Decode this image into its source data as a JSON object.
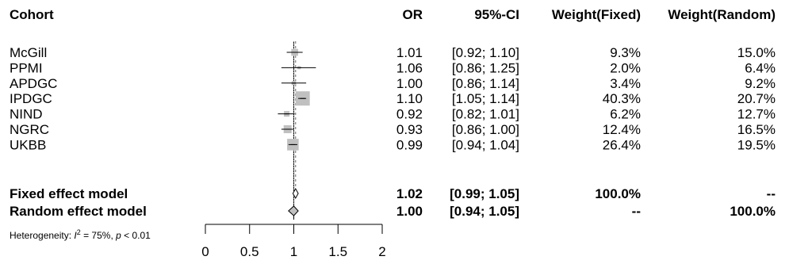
{
  "header": {
    "cohort": "Cohort",
    "or": "OR",
    "ci": "95%-CI",
    "weight_fixed": "Weight(Fixed)",
    "weight_random": "Weight(Random)"
  },
  "footer": {
    "heterogeneity_prefix": "Heterogeneity: ",
    "heterogeneity_i2_label": "I",
    "heterogeneity_i2_sup": "2",
    "heterogeneity_i2_value": " = 75%, ",
    "heterogeneity_p_label": "p",
    "heterogeneity_p_value": " < 0.01"
  },
  "colors": {
    "study_box": "#c0c0c0",
    "line": "#000000",
    "random_diamond": "#c0c0c0",
    "fixed_line": "#808080"
  },
  "chart_data": {
    "type": "forest",
    "xlim": [
      0,
      2
    ],
    "xticks": [
      "0",
      "0.5",
      "1",
      "1.5",
      "2"
    ],
    "null_value": 1,
    "studies": [
      {
        "cohort": "McGill",
        "or": 1.01,
        "lower": 0.92,
        "upper": 1.1,
        "or_text": "1.01",
        "ci_text": "[0.92; 1.10]",
        "weight_fixed": "9.3%",
        "weight_random": "15.0%",
        "wf": 9.3
      },
      {
        "cohort": "PPMI",
        "or": 1.06,
        "lower": 0.86,
        "upper": 1.25,
        "or_text": "1.06",
        "ci_text": "[0.86; 1.25]",
        "weight_fixed": "2.0%",
        "weight_random": "6.4%",
        "wf": 2.0
      },
      {
        "cohort": "APDGC",
        "or": 1.0,
        "lower": 0.86,
        "upper": 1.14,
        "or_text": "1.00",
        "ci_text": "[0.86; 1.14]",
        "weight_fixed": "3.4%",
        "weight_random": "9.2%",
        "wf": 3.4
      },
      {
        "cohort": "IPDGC",
        "or": 1.1,
        "lower": 1.05,
        "upper": 1.14,
        "or_text": "1.10",
        "ci_text": "[1.05; 1.14]",
        "weight_fixed": "40.3%",
        "weight_random": "20.7%",
        "wf": 40.3
      },
      {
        "cohort": "NIND",
        "or": 0.92,
        "lower": 0.82,
        "upper": 1.01,
        "or_text": "0.92",
        "ci_text": "[0.82; 1.01]",
        "weight_fixed": "6.2%",
        "weight_random": "12.7%",
        "wf": 6.2
      },
      {
        "cohort": "NGRC",
        "or": 0.93,
        "lower": 0.86,
        "upper": 1.0,
        "or_text": "0.93",
        "ci_text": "[0.86; 1.00]",
        "weight_fixed": "12.4%",
        "weight_random": "16.5%",
        "wf": 12.4
      },
      {
        "cohort": "UKBB",
        "or": 0.99,
        "lower": 0.94,
        "upper": 1.04,
        "or_text": "0.99",
        "ci_text": "[0.94; 1.04]",
        "weight_fixed": "26.4%",
        "weight_random": "19.5%",
        "wf": 26.4
      }
    ],
    "summaries": [
      {
        "label": "Fixed effect model",
        "or": 1.02,
        "lower": 0.99,
        "upper": 1.05,
        "or_text": "1.02",
        "ci_text": "[0.99; 1.05]",
        "weight_fixed": "100.0%",
        "weight_random": "--",
        "style": "fixed"
      },
      {
        "label": "Random effect model",
        "or": 1.0,
        "lower": 0.94,
        "upper": 1.05,
        "or_text": "1.00",
        "ci_text": "[0.94; 1.05]",
        "weight_fixed": "--",
        "weight_random": "100.0%",
        "style": "random"
      }
    ]
  }
}
